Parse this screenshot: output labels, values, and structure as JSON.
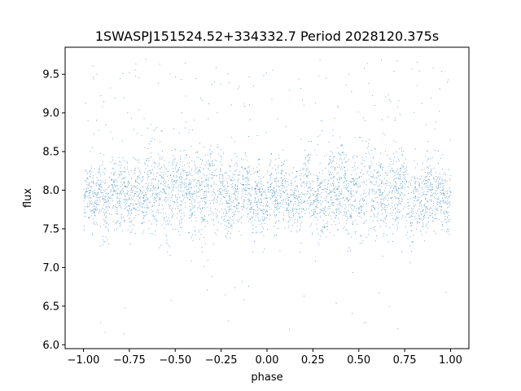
{
  "chart_data": {
    "type": "scatter",
    "title": "1SWASPJ151524.52+334332.7 Period 2028120.375s",
    "xlabel": "phase",
    "ylabel": "flux",
    "xlim": [
      -1.1,
      1.1
    ],
    "ylim": [
      5.95,
      9.85
    ],
    "xticks": [
      -1.0,
      -0.75,
      -0.5,
      -0.25,
      0.0,
      0.25,
      0.5,
      0.75,
      1.0
    ],
    "xtick_labels": [
      "−1.00",
      "−0.75",
      "−0.50",
      "−0.25",
      "0.00",
      "0.25",
      "0.50",
      "0.75",
      "1.00"
    ],
    "yticks": [
      6.0,
      6.5,
      7.0,
      7.5,
      8.0,
      8.5,
      9.0,
      9.5
    ],
    "ytick_labels": [
      "6.0",
      "6.5",
      "7.0",
      "7.5",
      "8.0",
      "8.5",
      "9.0",
      "9.5"
    ],
    "grid": false,
    "marker_color": "#1f77b4",
    "series": [
      {
        "description_of_shape": "folded light curve, dense band 7.3–8.4, broader around phase ±0.5, sparse outliers 6.1–9.7",
        "phase_range": [
          -1.0,
          1.0
        ],
        "mean_flux": 7.9,
        "core_flux_range": [
          7.3,
          8.4
        ],
        "outlier_flux_range": [
          6.1,
          9.7
        ],
        "high_flux_phases": [
          -0.5,
          -0.25,
          0.5,
          0.75
        ],
        "high_flux_peaks": [
          8.7,
          9.0,
          8.7,
          9.0
        ]
      }
    ]
  }
}
